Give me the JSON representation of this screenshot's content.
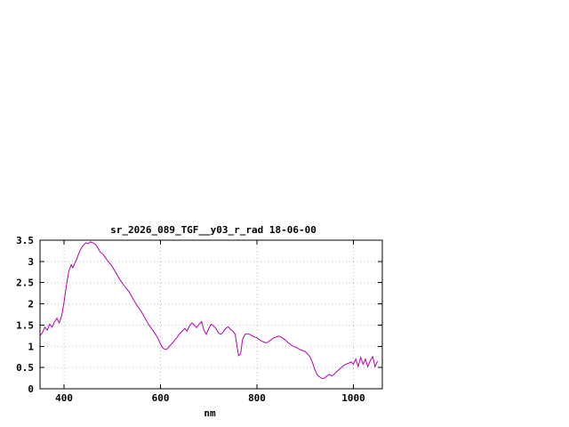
{
  "chart_data": {
    "type": "line",
    "title": "sr_2026_089_TGF__y03_r_rad 18-06-00",
    "xlabel": "nm",
    "ylabel": "",
    "xlim": [
      350,
      1060
    ],
    "ylim": [
      0,
      3.5
    ],
    "xticks": [
      400,
      600,
      800,
      1000
    ],
    "yticks": [
      0,
      0.5,
      1,
      1.5,
      2,
      2.5,
      3,
      3.5
    ],
    "grid": true,
    "legend": "none",
    "line_color": "#b000b0",
    "grid_color": "#b8b8b8",
    "border_color": "#000000",
    "background_color": "#ffffff",
    "series": [
      {
        "name": "sr_2026_089_TGF__y03_r_rad",
        "x": [
          350,
          355,
          360,
          365,
          370,
          375,
          380,
          385,
          390,
          395,
          400,
          405,
          410,
          415,
          418,
          422,
          426,
          430,
          435,
          440,
          445,
          450,
          455,
          460,
          465,
          470,
          475,
          480,
          485,
          490,
          495,
          500,
          505,
          510,
          515,
          520,
          525,
          530,
          535,
          540,
          545,
          550,
          555,
          560,
          565,
          570,
          575,
          580,
          585,
          590,
          595,
          600,
          605,
          610,
          615,
          620,
          625,
          630,
          635,
          640,
          645,
          650,
          655,
          660,
          665,
          670,
          675,
          680,
          685,
          690,
          695,
          700,
          705,
          710,
          715,
          720,
          725,
          730,
          735,
          740,
          745,
          750,
          755,
          758,
          762,
          766,
          770,
          775,
          780,
          785,
          790,
          795,
          800,
          805,
          810,
          815,
          820,
          825,
          830,
          835,
          840,
          845,
          850,
          855,
          860,
          865,
          870,
          875,
          880,
          885,
          890,
          895,
          900,
          905,
          910,
          915,
          920,
          925,
          930,
          935,
          940,
          945,
          950,
          955,
          960,
          965,
          970,
          975,
          980,
          985,
          990,
          995,
          1000,
          1005,
          1010,
          1015,
          1020,
          1025,
          1030,
          1035,
          1040,
          1045,
          1050
        ],
        "y": [
          1.25,
          1.32,
          1.45,
          1.38,
          1.52,
          1.45,
          1.58,
          1.66,
          1.55,
          1.72,
          2.05,
          2.45,
          2.78,
          2.92,
          2.85,
          2.95,
          3.05,
          3.18,
          3.3,
          3.38,
          3.44,
          3.42,
          3.46,
          3.44,
          3.4,
          3.32,
          3.22,
          3.18,
          3.1,
          3.02,
          2.95,
          2.88,
          2.78,
          2.68,
          2.58,
          2.5,
          2.42,
          2.35,
          2.28,
          2.18,
          2.08,
          1.98,
          1.9,
          1.82,
          1.72,
          1.62,
          1.52,
          1.44,
          1.36,
          1.28,
          1.18,
          1.05,
          0.96,
          0.92,
          0.95,
          1.02,
          1.08,
          1.15,
          1.22,
          1.3,
          1.36,
          1.42,
          1.36,
          1.48,
          1.55,
          1.5,
          1.44,
          1.52,
          1.58,
          1.38,
          1.28,
          1.42,
          1.52,
          1.48,
          1.42,
          1.32,
          1.28,
          1.34,
          1.42,
          1.46,
          1.4,
          1.36,
          1.28,
          1.05,
          0.78,
          0.82,
          1.15,
          1.28,
          1.3,
          1.28,
          1.25,
          1.22,
          1.2,
          1.16,
          1.12,
          1.1,
          1.08,
          1.12,
          1.16,
          1.2,
          1.22,
          1.24,
          1.22,
          1.18,
          1.14,
          1.08,
          1.04,
          1.0,
          0.98,
          0.95,
          0.92,
          0.9,
          0.88,
          0.82,
          0.75,
          0.62,
          0.45,
          0.33,
          0.28,
          0.24,
          0.25,
          0.3,
          0.34,
          0.3,
          0.34,
          0.4,
          0.45,
          0.5,
          0.55,
          0.58,
          0.6,
          0.63,
          0.58,
          0.7,
          0.52,
          0.74,
          0.58,
          0.7,
          0.52,
          0.66,
          0.76,
          0.52,
          0.65
        ]
      }
    ]
  }
}
